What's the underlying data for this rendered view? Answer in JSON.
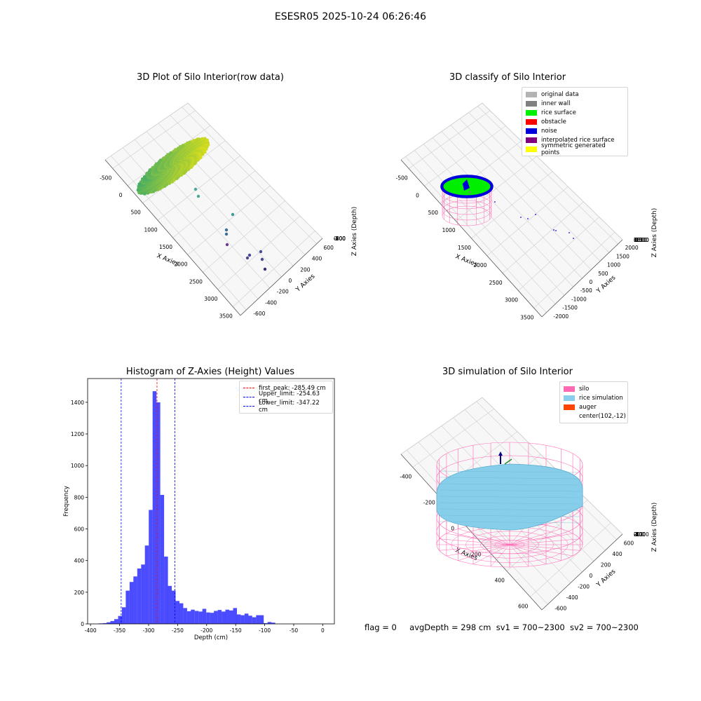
{
  "figure": {
    "suptitle": "ESESR05 2025-10-24 06:26:46",
    "status": {
      "flag": "flag = 0",
      "avg": "avgDepth = 298 cm",
      "sv1": "sv1 = 700~2300",
      "sv2": "sv2 = 700~2300"
    }
  },
  "chart_data": [
    {
      "type": "scatter",
      "title": "3D Plot of Silo Interior(row data)",
      "xlabel": "X Axies",
      "ylabel": "Y Axies",
      "zlabel": "Z Axies (Depth)",
      "x_ticks": [
        "-500",
        "0",
        "500",
        "1000",
        "1500",
        "2000",
        "2500",
        "3000",
        "3500"
      ],
      "y_ticks": [
        "-600",
        "-400",
        "-200",
        "0",
        "200",
        "400",
        "600"
      ],
      "z_ticks": [
        "0",
        "-200",
        "-400",
        "-600",
        "-800"
      ],
      "grid": true,
      "colormap": "viridis"
    },
    {
      "type": "scatter",
      "title": "3D classify of Silo Interior",
      "xlabel": "X Axies",
      "ylabel": "Y Axies",
      "zlabel": "Z Axies (Depth)",
      "x_ticks": [
        "-500",
        "0",
        "500",
        "1000",
        "1500",
        "2000",
        "2500",
        "3000",
        "3500"
      ],
      "y_ticks": [
        "-2000",
        "-1500",
        "-1000",
        "-500",
        "0",
        "500",
        "1000",
        "1500",
        "2000"
      ],
      "z_ticks": [
        "1500",
        "1000",
        "500",
        "0",
        "-500",
        "-1000",
        "-1500",
        "-2000"
      ],
      "grid": true,
      "legend_position": "top-right",
      "legend": [
        {
          "name": "original data",
          "color": "#b3b3b3"
        },
        {
          "name": "inner wall",
          "color": "#808080"
        },
        {
          "name": "rice surface",
          "color": "#00ee00"
        },
        {
          "name": "obstacle",
          "color": "#ff0000"
        },
        {
          "name": "noise",
          "color": "#0000dd"
        },
        {
          "name": "interpolated rice surface",
          "color": "#800080"
        },
        {
          "name": "symmetric generated points",
          "color": "#ffff00"
        }
      ]
    },
    {
      "type": "bar",
      "title": "Histogram of Z-Axies (Height) Values",
      "xlabel": "Depth (cm)",
      "ylabel": "Frequency",
      "xlim": [
        -405,
        20
      ],
      "ylim": [
        0,
        1550
      ],
      "x_ticks": [
        -400,
        -350,
        -300,
        -250,
        -200,
        -150,
        -100,
        -50,
        0
      ],
      "y_ticks": [
        0,
        200,
        400,
        600,
        800,
        1000,
        1200,
        1400
      ],
      "bar_color": "#0000ff",
      "bin_width": 6.6,
      "bins_start": [
        -385.5,
        -378.9,
        -372.3,
        -365.7,
        -359.1,
        -352.5,
        -345.9,
        -339.3,
        -332.7,
        -326.1,
        -319.5,
        -312.9,
        -306.3,
        -299.7,
        -293.1,
        -286.5,
        -279.9,
        -273.3,
        -266.7,
        -260.1,
        -253.5,
        -246.9,
        -240.3,
        -233.7,
        -227.1,
        -220.5,
        -213.9,
        -207.3,
        -200.7,
        -194.1,
        -187.5,
        -180.9,
        -174.3,
        -167.7,
        -161.1,
        -154.5,
        -147.9,
        -141.3,
        -134.7,
        -128.1,
        -121.5,
        -114.9,
        -108.3,
        -101.7,
        -95.1,
        -88.5,
        -81.9,
        -75.3,
        -68.7,
        -62.1,
        -55.5,
        -48.9,
        -42.3,
        -35.7,
        -29.1,
        -22.5
      ],
      "values": [
        3,
        5,
        10,
        18,
        30,
        50,
        105,
        210,
        265,
        300,
        350,
        375,
        495,
        720,
        1470,
        1400,
        815,
        425,
        240,
        210,
        145,
        130,
        100,
        80,
        90,
        82,
        78,
        95,
        72,
        70,
        82,
        88,
        78,
        90,
        85,
        100,
        60,
        55,
        65,
        52,
        42,
        55,
        55,
        5,
        12,
        8,
        0,
        0,
        0,
        0,
        0,
        0,
        0,
        0,
        0,
        0
      ],
      "legend_position": "top-right",
      "legend": [
        {
          "name": "first_peak: -285.49 cm",
          "value": -285.49,
          "color": "#ff0000"
        },
        {
          "name": "Upper_limit: -254.63 cm",
          "value": -254.63,
          "color": "#0000ff"
        },
        {
          "name": "Lower_limit: -347.22 cm",
          "value": -347.22,
          "color": "#0000ff"
        }
      ]
    },
    {
      "type": "surface",
      "title": "3D simulation of Silo Interior",
      "xlabel": "X Axies",
      "ylabel": "Y Axies",
      "zlabel": "Z Axies (Depth)",
      "x_ticks": [
        "-400",
        "-200",
        "0",
        "200",
        "400",
        "600"
      ],
      "y_ticks": [
        "-600",
        "-400",
        "-200",
        "0",
        "200",
        "400",
        "600"
      ],
      "z_ticks": [
        "200",
        "0",
        "-200",
        "-400",
        "-600",
        "-800",
        "-1000"
      ],
      "grid": true,
      "legend_position": "top-right",
      "legend": [
        {
          "name": "silo",
          "color": "#ff69b4"
        },
        {
          "name": "rice simulation",
          "color": "#87ceeb"
        },
        {
          "name": "auger",
          "color": "#ff4500"
        },
        {
          "name": "center(102,-12)",
          "color": ""
        }
      ]
    }
  ]
}
